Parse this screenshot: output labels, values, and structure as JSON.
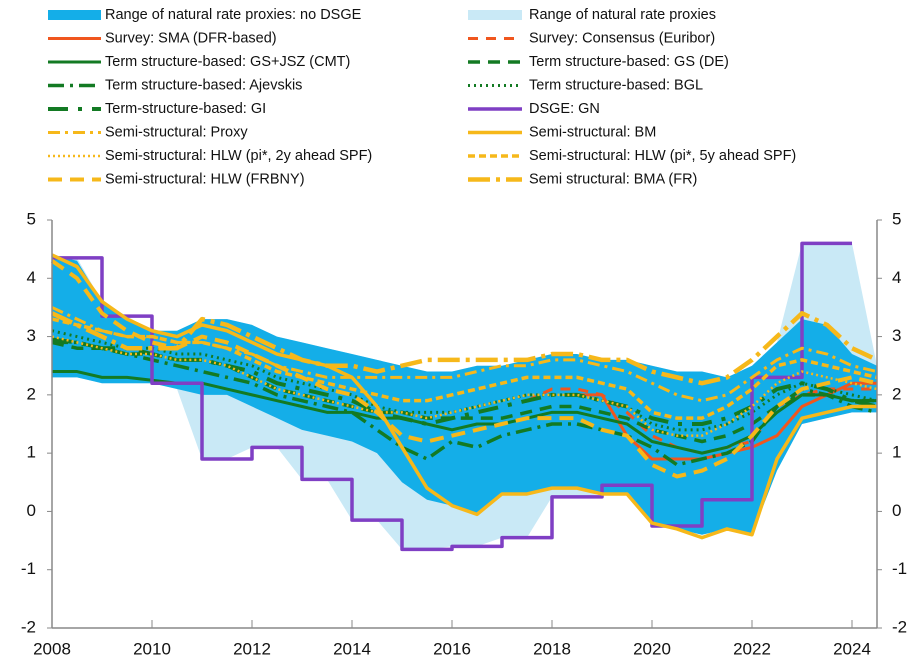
{
  "chart_data": {
    "type": "line",
    "x": [
      2008,
      2008.5,
      2009,
      2009.5,
      2010,
      2010.5,
      2011,
      2011.5,
      2012,
      2012.5,
      2013,
      2013.5,
      2014,
      2014.5,
      2015,
      2015.5,
      2016,
      2016.5,
      2017,
      2017.5,
      2018,
      2018.5,
      2019,
      2019.5,
      2020,
      2020.5,
      2021,
      2021.5,
      2022,
      2022.5,
      2023,
      2023.5,
      2024,
      2024.5
    ],
    "xlim": [
      2008,
      2024.5
    ],
    "xticks": [
      2008,
      2010,
      2012,
      2014,
      2016,
      2018,
      2020,
      2022,
      2024
    ],
    "ylim": [
      -2,
      5
    ],
    "yticks": [
      -2,
      -1,
      0,
      1,
      2,
      3,
      4,
      5
    ],
    "bands": [
      {
        "name": "Range of natural rate proxies: no DSGE",
        "color": "#14aee8",
        "high": [
          4.4,
          4.3,
          3.6,
          3.3,
          3.1,
          3.1,
          3.3,
          3.3,
          3.2,
          3.0,
          2.9,
          2.8,
          2.7,
          2.6,
          2.5,
          2.4,
          2.4,
          2.5,
          2.5,
          2.6,
          2.7,
          2.7,
          2.6,
          2.6,
          2.5,
          2.4,
          2.4,
          2.3,
          2.5,
          2.9,
          3.3,
          3.2,
          2.7,
          2.5
        ],
        "low": [
          2.3,
          2.3,
          2.2,
          2.2,
          2.2,
          2.1,
          2.0,
          2.0,
          1.8,
          1.6,
          1.4,
          1.3,
          1.2,
          1.0,
          0.5,
          0.2,
          0.1,
          -0.05,
          0.3,
          0.3,
          0.4,
          0.4,
          0.3,
          0.3,
          -0.2,
          -0.3,
          -0.4,
          -0.3,
          -0.4,
          0.7,
          1.5,
          1.6,
          1.7,
          1.7
        ]
      },
      {
        "name": "Range of natural rate proxies",
        "color": "#c9e9f6",
        "high": [
          4.4,
          4.35,
          3.6,
          3.35,
          3.1,
          3.1,
          3.3,
          3.3,
          3.2,
          3.0,
          2.9,
          2.8,
          2.7,
          2.6,
          2.5,
          2.4,
          2.4,
          2.5,
          2.5,
          2.6,
          2.7,
          2.7,
          2.6,
          2.6,
          2.5,
          2.4,
          2.4,
          2.3,
          2.5,
          2.9,
          4.6,
          4.6,
          4.6,
          2.5
        ],
        "low": [
          2.3,
          2.3,
          2.2,
          2.2,
          2.2,
          2.1,
          0.9,
          0.9,
          1.1,
          1.1,
          0.55,
          0.55,
          -0.15,
          -0.15,
          -0.65,
          -0.65,
          -0.6,
          -0.6,
          -0.45,
          -0.45,
          0.25,
          0.25,
          0.3,
          0.3,
          -0.25,
          -0.3,
          -0.4,
          -0.3,
          -0.4,
          0.7,
          1.5,
          1.6,
          1.7,
          1.7
        ]
      }
    ],
    "series": [
      {
        "name": "Survey: SMA (DFR-based)",
        "color": "#f0561e",
        "dash": "none",
        "width": 3,
        "values": [
          null,
          null,
          null,
          null,
          null,
          null,
          null,
          null,
          null,
          null,
          null,
          null,
          null,
          null,
          null,
          null,
          null,
          null,
          null,
          null,
          null,
          2.0,
          2.0,
          1.3,
          0.9,
          0.9,
          0.9,
          1.0,
          1.1,
          1.3,
          1.8,
          2.0,
          2.2,
          2.2
        ]
      },
      {
        "name": "Survey: Consensus (Euribor)",
        "color": "#f0561e",
        "dash": "10,8",
        "width": 3,
        "values": [
          null,
          null,
          null,
          null,
          null,
          null,
          null,
          null,
          null,
          null,
          null,
          null,
          null,
          null,
          null,
          null,
          null,
          null,
          null,
          1.9,
          2.1,
          2.1,
          2.0,
          1.7,
          1.3,
          1.1,
          1.0,
          1.1,
          1.2,
          1.8,
          2.0,
          2.1,
          2.1,
          2.1
        ]
      },
      {
        "name": "Term structure-based: GS+JSZ (CMT)",
        "color": "#137a23",
        "dash": "none",
        "width": 3,
        "values": [
          2.4,
          2.4,
          2.3,
          2.3,
          2.25,
          2.2,
          2.2,
          2.1,
          2.0,
          1.9,
          1.8,
          1.7,
          1.7,
          1.6,
          1.6,
          1.5,
          1.4,
          1.5,
          1.5,
          1.6,
          1.7,
          1.7,
          1.6,
          1.5,
          1.2,
          1.1,
          1.0,
          1.1,
          1.3,
          1.7,
          2.0,
          2.0,
          1.9,
          1.9
        ]
      },
      {
        "name": "Term structure-based: GS (DE)",
        "color": "#137a23",
        "dash": "12,8",
        "width": 3.5,
        "values": [
          2.9,
          2.8,
          2.8,
          2.7,
          2.7,
          2.6,
          2.6,
          2.5,
          2.3,
          2.1,
          2.0,
          1.9,
          1.8,
          1.7,
          1.7,
          1.6,
          1.6,
          1.6,
          1.6,
          1.7,
          1.8,
          1.8,
          1.7,
          1.6,
          1.4,
          1.3,
          1.2,
          1.3,
          1.5,
          1.8,
          2.0,
          2.0,
          1.9,
          1.9
        ]
      },
      {
        "name": "Term structure-based: Ajevskis",
        "color": "#137a23",
        "dash": "16,6,3,6",
        "width": 3.5,
        "values": [
          2.9,
          2.9,
          2.8,
          2.7,
          2.6,
          2.5,
          2.4,
          2.3,
          2.2,
          2.0,
          1.9,
          1.8,
          1.7,
          1.4,
          1.1,
          0.9,
          1.2,
          1.1,
          1.3,
          1.4,
          1.5,
          1.5,
          1.4,
          1.3,
          1.1,
          0.8,
          0.9,
          1.0,
          1.2,
          1.8,
          2.1,
          2.0,
          1.8,
          1.7
        ]
      },
      {
        "name": "Term structure-based: BGL",
        "color": "#137a23",
        "dash": "2,4",
        "width": 3,
        "values": [
          3.1,
          3.0,
          2.9,
          2.8,
          2.8,
          2.7,
          2.7,
          2.6,
          2.5,
          2.3,
          2.2,
          2.1,
          2.0,
          1.8,
          1.7,
          1.7,
          1.7,
          1.8,
          1.9,
          2.0,
          2.0,
          2.0,
          1.9,
          1.8,
          1.5,
          1.4,
          1.4,
          1.5,
          1.7,
          2.0,
          2.2,
          2.1,
          2.0,
          1.9
        ]
      },
      {
        "name": "Term-structure-based: GI",
        "color": "#137a23",
        "dash": "20,10,4,10",
        "width": 4,
        "values": [
          2.95,
          2.9,
          2.8,
          2.8,
          2.7,
          2.6,
          2.6,
          2.5,
          2.4,
          2.2,
          2.1,
          2.0,
          1.9,
          1.7,
          1.6,
          1.5,
          1.6,
          1.7,
          1.8,
          1.9,
          2.0,
          2.0,
          1.9,
          1.8,
          1.6,
          1.5,
          1.5,
          1.6,
          1.8,
          2.1,
          2.2,
          2.1,
          1.9,
          1.8
        ]
      },
      {
        "name": "DSGE: GN",
        "color": "#7f3fc4",
        "dash": "none",
        "width": 3.5,
        "step": true,
        "values": [
          4.35,
          4.35,
          3.35,
          3.35,
          2.2,
          2.2,
          0.9,
          0.9,
          1.1,
          1.1,
          0.55,
          0.55,
          -0.15,
          -0.15,
          -0.65,
          -0.65,
          -0.6,
          -0.6,
          -0.45,
          -0.45,
          0.25,
          0.25,
          0.45,
          0.45,
          -0.25,
          -0.25,
          0.2,
          0.2,
          2.3,
          2.3,
          4.6,
          4.6,
          4.6,
          null
        ]
      },
      {
        "name": "Semi-structural: Proxy",
        "color": "#f6b81a",
        "dash": "12,5,3,5",
        "width": 3,
        "values": [
          3.5,
          3.3,
          3.1,
          3.0,
          3.0,
          2.9,
          2.9,
          2.8,
          2.7,
          2.5,
          2.4,
          2.3,
          2.3,
          2.3,
          2.3,
          2.3,
          2.3,
          2.4,
          2.5,
          2.5,
          2.6,
          2.6,
          2.5,
          2.4,
          2.2,
          2.0,
          1.9,
          2.0,
          2.3,
          2.6,
          2.8,
          2.7,
          2.5,
          2.4
        ]
      },
      {
        "name": "Semi-structural: BM",
        "color": "#f6b81a",
        "dash": "none",
        "width": 3.5,
        "values": [
          4.4,
          4.2,
          3.6,
          3.3,
          3.1,
          3.0,
          3.2,
          3.1,
          2.9,
          2.7,
          2.6,
          2.5,
          2.3,
          1.8,
          1.1,
          0.4,
          0.1,
          -0.05,
          0.3,
          0.3,
          0.4,
          0.4,
          0.3,
          0.3,
          -0.2,
          -0.3,
          -0.45,
          -0.3,
          -0.4,
          0.9,
          1.6,
          1.7,
          1.8,
          1.8
        ]
      },
      {
        "name": "Semi-structural: HLW (pi*, 2y ahead SPF)",
        "color": "#f6b81a",
        "dash": "2,3",
        "width": 2.5,
        "values": [
          3.0,
          2.9,
          2.8,
          2.7,
          2.7,
          2.6,
          2.6,
          2.5,
          2.3,
          2.1,
          2.0,
          1.9,
          1.8,
          1.7,
          1.7,
          1.6,
          1.7,
          1.8,
          1.9,
          2.0,
          2.0,
          2.0,
          1.9,
          1.8,
          1.4,
          1.3,
          1.3,
          1.5,
          1.8,
          2.2,
          2.4,
          2.3,
          2.2,
          2.1
        ]
      },
      {
        "name": "Semi-structural: HLW (pi*, 5y ahead SPF)",
        "color": "#f6b81a",
        "dash": "7,4",
        "width": 3.5,
        "values": [
          3.3,
          3.2,
          3.1,
          3.0,
          3.0,
          2.9,
          2.9,
          2.8,
          2.6,
          2.4,
          2.3,
          2.2,
          2.1,
          2.0,
          1.9,
          1.9,
          2.0,
          2.1,
          2.2,
          2.3,
          2.3,
          2.3,
          2.2,
          2.1,
          1.7,
          1.6,
          1.6,
          1.8,
          2.1,
          2.5,
          2.6,
          2.5,
          2.4,
          2.3
        ]
      },
      {
        "name": "Semi-structural: HLW (FRBNY)",
        "color": "#f6b81a",
        "dash": "14,8",
        "width": 4,
        "values": [
          4.3,
          4.0,
          3.4,
          3.1,
          2.9,
          2.8,
          3.0,
          2.9,
          2.7,
          2.5,
          2.3,
          2.1,
          2.0,
          1.7,
          1.3,
          1.2,
          1.3,
          1.4,
          1.5,
          1.6,
          1.6,
          1.6,
          1.4,
          1.3,
          0.8,
          0.6,
          0.7,
          0.9,
          1.3,
          1.8,
          2.1,
          2.2,
          2.3,
          2.2
        ]
      },
      {
        "name": "Semi structural: BMA (FR)",
        "color": "#f6b81a",
        "dash": "22,6,4,6",
        "width": 4.5,
        "values": [
          3.4,
          3.2,
          3.0,
          2.8,
          2.8,
          2.8,
          3.3,
          3.2,
          3.0,
          2.8,
          2.6,
          2.5,
          2.5,
          2.4,
          2.5,
          2.6,
          2.6,
          2.6,
          2.6,
          2.6,
          2.7,
          2.7,
          2.6,
          2.6,
          2.4,
          2.3,
          2.2,
          2.3,
          2.6,
          3.0,
          3.4,
          3.2,
          2.8,
          2.6
        ]
      }
    ]
  }
}
